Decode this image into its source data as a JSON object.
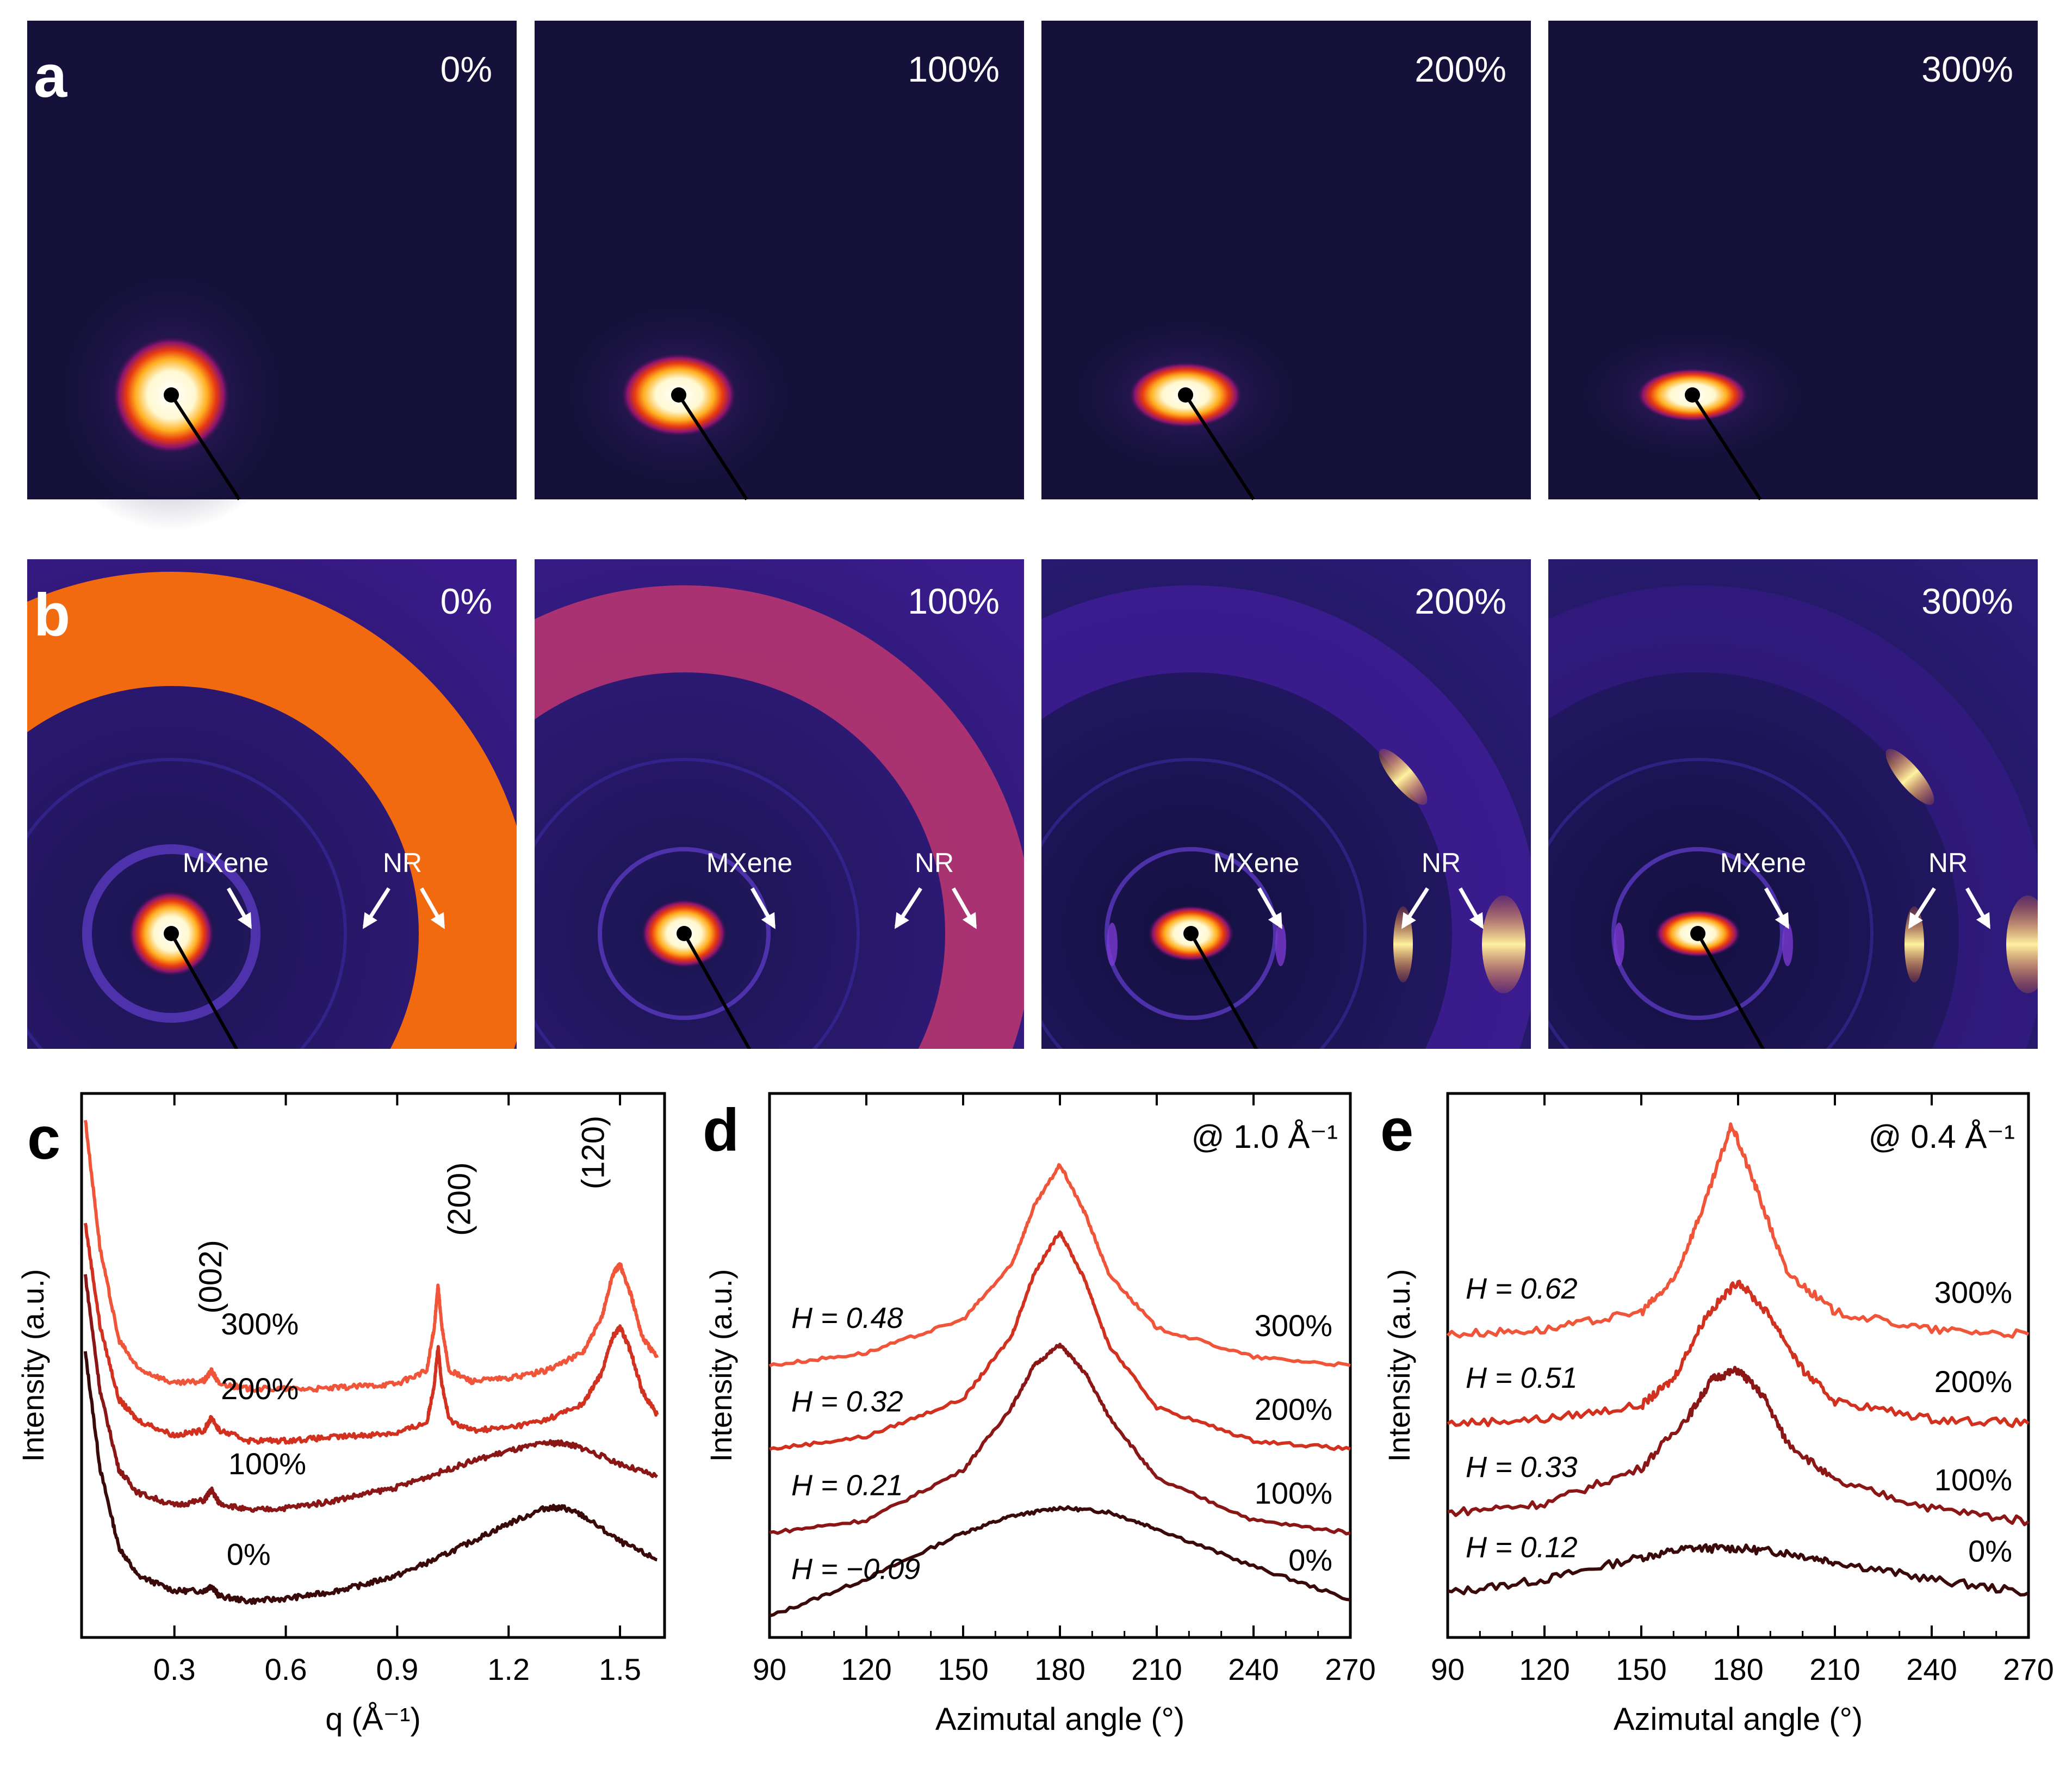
{
  "figure": {
    "panel_labels": {
      "a": "a",
      "b": "b",
      "c": "c",
      "d": "d",
      "e": "e"
    }
  },
  "row_a": {
    "strains": [
      "0%",
      "100%",
      "200%",
      "300%"
    ]
  },
  "row_b": {
    "strains": [
      "0%",
      "100%",
      "200%",
      "300%"
    ],
    "annotation_mxene": "MXene",
    "annotation_nr": "NR"
  },
  "colors": {
    "curve_0": "#3a0a0a",
    "curve_100": "#8b1616",
    "curve_200": "#d3311f",
    "curve_300": "#f0553a",
    "detector_bg": "#15113a"
  },
  "chart_data": [
    {
      "id": "c",
      "type": "line",
      "xlabel": "q (Å⁻¹)",
      "ylabel": "Intensity (a.u.)",
      "xlim": [
        0.05,
        1.62
      ],
      "xticks": [
        "0.3",
        "0.6",
        "0.9",
        "1.2",
        "1.5"
      ],
      "peak_labels": [
        "(002)",
        "(200)",
        "(120)"
      ],
      "series": [
        {
          "name": "0%",
          "color": "#3a0a0a",
          "x": [
            0.06,
            0.1,
            0.15,
            0.2,
            0.3,
            0.38,
            0.4,
            0.42,
            0.5,
            0.6,
            0.7,
            0.8,
            0.9,
            1.0,
            1.1,
            1.2,
            1.3,
            1.35,
            1.4,
            1.5,
            1.6
          ],
          "y": [
            1.0,
            0.55,
            0.25,
            0.14,
            0.08,
            0.08,
            0.1,
            0.06,
            0.04,
            0.05,
            0.07,
            0.1,
            0.14,
            0.2,
            0.27,
            0.34,
            0.4,
            0.4,
            0.37,
            0.27,
            0.2
          ]
        },
        {
          "name": "100%",
          "color": "#8b1616",
          "x": [
            0.06,
            0.1,
            0.15,
            0.2,
            0.3,
            0.38,
            0.4,
            0.42,
            0.5,
            0.6,
            0.7,
            0.8,
            0.9,
            1.0,
            1.1,
            1.2,
            1.3,
            1.35,
            1.4,
            1.5,
            1.6
          ],
          "y": [
            1.3,
            0.85,
            0.55,
            0.46,
            0.41,
            0.43,
            0.47,
            0.42,
            0.39,
            0.4,
            0.42,
            0.45,
            0.48,
            0.53,
            0.58,
            0.62,
            0.65,
            0.65,
            0.63,
            0.57,
            0.52
          ]
        },
        {
          "name": "200%",
          "color": "#d3311f",
          "x": [
            0.06,
            0.1,
            0.15,
            0.2,
            0.3,
            0.38,
            0.4,
            0.42,
            0.5,
            0.6,
            0.7,
            0.8,
            0.9,
            0.98,
            1.0,
            1.01,
            1.02,
            1.04,
            1.1,
            1.2,
            1.3,
            1.4,
            1.45,
            1.48,
            1.5,
            1.53,
            1.56,
            1.6
          ],
          "y": [
            1.5,
            1.1,
            0.82,
            0.74,
            0.68,
            0.7,
            0.75,
            0.7,
            0.66,
            0.66,
            0.67,
            0.68,
            0.69,
            0.73,
            0.88,
            1.02,
            0.88,
            0.74,
            0.7,
            0.71,
            0.74,
            0.8,
            0.92,
            1.06,
            1.1,
            1.0,
            0.85,
            0.76
          ]
        },
        {
          "name": "300%",
          "color": "#f0553a",
          "x": [
            0.06,
            0.1,
            0.15,
            0.2,
            0.3,
            0.38,
            0.4,
            0.42,
            0.5,
            0.6,
            0.7,
            0.8,
            0.9,
            0.98,
            1.0,
            1.01,
            1.02,
            1.04,
            1.1,
            1.2,
            1.3,
            1.4,
            1.45,
            1.48,
            1.5,
            1.53,
            1.56,
            1.6
          ],
          "y": [
            1.9,
            1.4,
            1.05,
            0.94,
            0.88,
            0.89,
            0.93,
            0.88,
            0.86,
            0.86,
            0.86,
            0.87,
            0.88,
            0.93,
            1.1,
            1.26,
            1.1,
            0.93,
            0.89,
            0.9,
            0.93,
            1.0,
            1.13,
            1.3,
            1.34,
            1.22,
            1.06,
            0.98
          ]
        }
      ]
    },
    {
      "id": "d",
      "type": "line",
      "xlabel": "Azimutal angle (°)",
      "ylabel": "Intensity (a.u.)",
      "annotation": "@ 1.0 Å⁻¹",
      "xlim": [
        90,
        270
      ],
      "xticks": [
        "90",
        "120",
        "150",
        "180",
        "210",
        "240",
        "270"
      ],
      "series": [
        {
          "name": "0%",
          "H": "H = −0.09",
          "color": "#3a0a0a",
          "x": [
            90,
            120,
            150,
            165,
            180,
            195,
            210,
            240,
            270
          ],
          "y": [
            0.0,
            0.09,
            0.2,
            0.24,
            0.26,
            0.25,
            0.21,
            0.12,
            0.04
          ]
        },
        {
          "name": "100%",
          "H": "H = 0.21",
          "color": "#8b1616",
          "x": [
            90,
            120,
            150,
            165,
            172,
            180,
            188,
            195,
            210,
            240,
            270
          ],
          "y": [
            0.2,
            0.23,
            0.35,
            0.5,
            0.6,
            0.65,
            0.58,
            0.48,
            0.33,
            0.23,
            0.2
          ]
        },
        {
          "name": "200%",
          "H": "H = 0.32",
          "color": "#d3311f",
          "x": [
            90,
            120,
            150,
            165,
            172,
            180,
            188,
            195,
            210,
            240,
            270
          ],
          "y": [
            0.4,
            0.43,
            0.52,
            0.67,
            0.82,
            0.92,
            0.8,
            0.65,
            0.5,
            0.42,
            0.4
          ]
        },
        {
          "name": "300%",
          "H": "H = 0.48",
          "color": "#f0553a",
          "x": [
            90,
            120,
            150,
            165,
            172,
            180,
            188,
            195,
            210,
            240,
            270
          ],
          "y": [
            0.6,
            0.63,
            0.71,
            0.84,
            0.98,
            1.08,
            0.96,
            0.82,
            0.69,
            0.62,
            0.6
          ]
        }
      ]
    },
    {
      "id": "e",
      "type": "line",
      "xlabel": "Azimutal angle (°)",
      "ylabel": "Intensity (a.u.)",
      "annotation": "@ 0.4 Å⁻¹",
      "xlim": [
        90,
        270
      ],
      "xticks": [
        "90",
        "120",
        "150",
        "180",
        "210",
        "240",
        "270"
      ],
      "series": [
        {
          "name": "0%",
          "H": "H = 0.12",
          "color": "#3a0a0a",
          "x": [
            90,
            120,
            150,
            165,
            180,
            195,
            210,
            240,
            270
          ],
          "y": [
            0.0,
            0.03,
            0.08,
            0.1,
            0.1,
            0.09,
            0.07,
            0.03,
            0.0
          ]
        },
        {
          "name": "100%",
          "H": "H = 0.33",
          "color": "#8b1616",
          "x": [
            90,
            120,
            150,
            165,
            172,
            180,
            188,
            195,
            210,
            240,
            270
          ],
          "y": [
            0.18,
            0.2,
            0.28,
            0.4,
            0.48,
            0.5,
            0.44,
            0.34,
            0.25,
            0.19,
            0.16
          ]
        },
        {
          "name": "200%",
          "H": "H = 0.51",
          "color": "#d3311f",
          "x": [
            90,
            120,
            150,
            160,
            170,
            180,
            190,
            200,
            210,
            240,
            270
          ],
          "y": [
            0.38,
            0.39,
            0.42,
            0.48,
            0.62,
            0.7,
            0.62,
            0.5,
            0.43,
            0.39,
            0.38
          ]
        },
        {
          "name": "300%",
          "H": "H = 0.62",
          "color": "#f0553a",
          "x": [
            90,
            120,
            150,
            160,
            170,
            178,
            186,
            195,
            210,
            240,
            270
          ],
          "y": [
            0.58,
            0.59,
            0.63,
            0.7,
            0.88,
            1.05,
            0.9,
            0.72,
            0.63,
            0.59,
            0.58
          ]
        }
      ]
    }
  ]
}
